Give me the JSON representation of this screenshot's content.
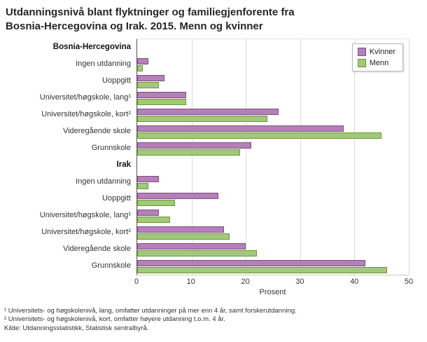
{
  "title": "Utdanningsnivå blant flyktninger og familiegjenforente fra Bosnia-Hercegovina og Irak. 2015. Menn og kvinner",
  "chart_data": {
    "type": "bar",
    "orientation": "horizontal",
    "xlabel": "Prosent",
    "xlim": [
      0,
      50
    ],
    "xticks": [
      0,
      10,
      20,
      30,
      40,
      50
    ],
    "legend_position": "top-right",
    "grid": "vertical",
    "series_names": [
      "Kvinner",
      "Menn"
    ],
    "series_colors": {
      "Kvinner": {
        "fill": "#b57fb7",
        "border": "#7e4f86"
      },
      "Menn": {
        "fill": "#a3c878",
        "border": "#69983a"
      }
    },
    "groups": [
      {
        "name": "Bosnia-Hercegovina",
        "categories": [
          "Ingen utdanning",
          "Uoppgitt",
          "Universitet/høgskole, lang¹",
          "Universitet/høgskole, kort²",
          "Videregående skole",
          "Grunnskole"
        ],
        "series": [
          {
            "name": "Kvinner",
            "values": [
              2,
              5,
              9,
              26,
              38,
              21
            ]
          },
          {
            "name": "Menn",
            "values": [
              1,
              4,
              9,
              24,
              45,
              19
            ]
          }
        ]
      },
      {
        "name": "Irak",
        "categories": [
          "Ingen utdanning",
          "Uoppgitt",
          "Universitet/høgskole, lang¹",
          "Universitet/høgskole, kort²",
          "Videregående skole",
          "Grunnskole"
        ],
        "series": [
          {
            "name": "Kvinner",
            "values": [
              4,
              15,
              4,
              16,
              20,
              42
            ]
          },
          {
            "name": "Menn",
            "values": [
              2,
              7,
              6,
              17,
              22,
              46
            ]
          }
        ]
      }
    ]
  },
  "footnotes": [
    "¹ Universitets- og høgskolenivå, lang, omfatter utdanninger på mer enn 4 år, samt forskerutdanning.",
    "² Universitets- og høgskolenivå, kort, omfatter høyere utdanning t.o.m. 4 år.",
    "Kilde: Utdanningsstatistikk, Statistisk sentralbyrå."
  ]
}
